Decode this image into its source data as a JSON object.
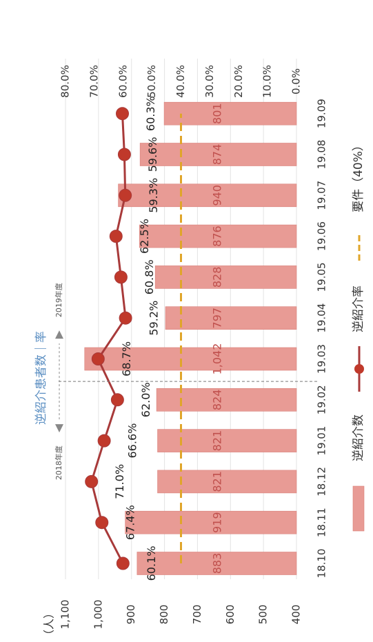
{
  "chart_data": {
    "type": "bar",
    "title": "逆紹介患者数｜率",
    "left_axis_unit": "（人）",
    "categories": [
      "18.10",
      "18.11",
      "18.12",
      "19.01",
      "19.02",
      "19.03",
      "19.04",
      "19.05",
      "19.06",
      "19.07",
      "19.08",
      "19.09"
    ],
    "bar_series": {
      "name": "逆紹介数",
      "values": [
        883,
        919,
        821,
        821,
        824,
        1042,
        797,
        828,
        876,
        940,
        874,
        801
      ],
      "labels": [
        "883",
        "919",
        "821",
        "821",
        "824",
        "1,042",
        "797",
        "828",
        "876",
        "940",
        "874",
        "801"
      ]
    },
    "line_series": {
      "name": "逆紹介率",
      "values": [
        60.1,
        67.4,
        71.0,
        66.6,
        62.0,
        68.7,
        59.2,
        60.8,
        62.5,
        59.3,
        59.6,
        60.3
      ],
      "labels": [
        "60.1%",
        "67.4%",
        "71.0%",
        "66.6%",
        "62.0%",
        "68.7%",
        "59.2%",
        "60.8%",
        "62.5%",
        "59.3%",
        "59.6%",
        "60.3%"
      ]
    },
    "threshold_series": {
      "name": "要件（40%）",
      "value": 40
    },
    "left_axis": {
      "min": 400,
      "max": 1100,
      "ticks": [
        "400",
        "500",
        "600",
        "700",
        "800",
        "900",
        "1,000",
        "1,100"
      ]
    },
    "right_axis": {
      "min": 0,
      "max": 80,
      "ticks": [
        "0.0%",
        "10.0%",
        "20.0%",
        "30.0%",
        "40.0%",
        "50.0%",
        "60.0%",
        "70.0%",
        "80.0%"
      ]
    },
    "divider": {
      "after_category": "19.03",
      "left_label": "2018年度",
      "right_label": "2019年度"
    },
    "colors": {
      "bar": "#e89b95",
      "bar_edge": "#d9807a",
      "bar_label": "#c0504d",
      "line": "#a83a3a",
      "marker": "#c0392b",
      "threshold": "#e0a52a",
      "title": "#5a8ec2"
    },
    "orientation": "rotated 90deg clockwise"
  }
}
